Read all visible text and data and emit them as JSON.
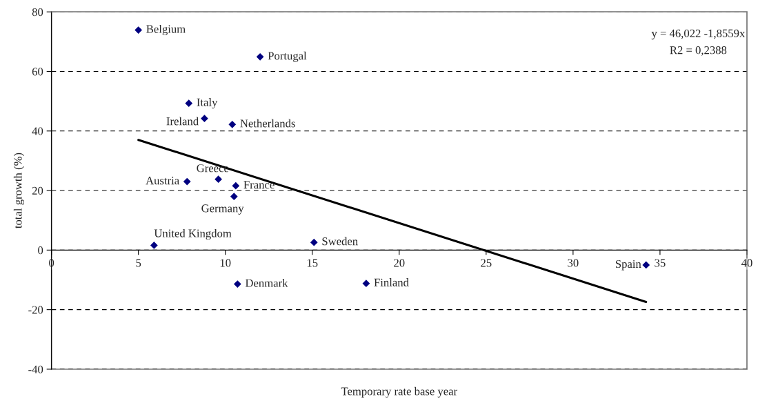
{
  "chart_data": {
    "type": "scatter",
    "xlabel": "Temporary rate base year",
    "ylabel": "total growth (%)",
    "series": [
      {
        "color": "#000080",
        "marker": "diamond",
        "x": [
          5.0,
          12.0,
          7.9,
          8.8,
          10.4,
          7.8,
          9.6,
          10.6,
          10.5,
          5.9,
          15.1,
          10.7,
          18.1,
          34.2
        ],
        "values": [
          73.9,
          64.9,
          49.3,
          44.2,
          42.2,
          23.0,
          23.8,
          21.6,
          18.0,
          1.6,
          2.6,
          -11.4,
          -11.2,
          -5.0
        ]
      },
      {
        "type": "line",
        "color": "#000000",
        "marker": "none",
        "line_style": "solid",
        "x": [
          5.0,
          34.2
        ],
        "values": [
          37.0,
          -17.4
        ]
      }
    ],
    "annotations": [
      {
        "text": "Belgium",
        "x": 5.0,
        "y": 73.9
      },
      {
        "text": "Portugal",
        "x": 12.0,
        "y": 64.9
      },
      {
        "text": "Italy",
        "x": 7.9,
        "y": 49.3
      },
      {
        "text": "Ireland",
        "x": 8.8,
        "y": 44.2
      },
      {
        "text": "Netherlands",
        "x": 10.4,
        "y": 42.2
      },
      {
        "text": "Austria",
        "x": 7.8,
        "y": 23.0
      },
      {
        "text": "Greece",
        "x": 9.6,
        "y": 23.8
      },
      {
        "text": "France",
        "x": 10.6,
        "y": 21.6
      },
      {
        "text": "Germany",
        "x": 10.5,
        "y": 18.0
      },
      {
        "text": "United Kingdom",
        "x": 5.9,
        "y": 1.6
      },
      {
        "text": "Sweden",
        "x": 15.1,
        "y": 2.6
      },
      {
        "text": "Denmark",
        "x": 10.7,
        "y": -11.4
      },
      {
        "text": "Finland",
        "x": 18.1,
        "y": -11.2
      },
      {
        "text": "Spain",
        "x": 34.2,
        "y": -5.0
      },
      "y = 46,022 -1,8559x",
      "R2 = 0,2388"
    ],
    "xlim": [
      0,
      40
    ],
    "xticks": [
      0,
      5,
      10,
      15,
      20,
      25,
      30,
      35,
      40
    ],
    "ylim": [
      -40,
      80
    ],
    "yticks": [
      -40,
      -20,
      0,
      20,
      40,
      60,
      80
    ],
    "grid": "y",
    "legend": false
  }
}
